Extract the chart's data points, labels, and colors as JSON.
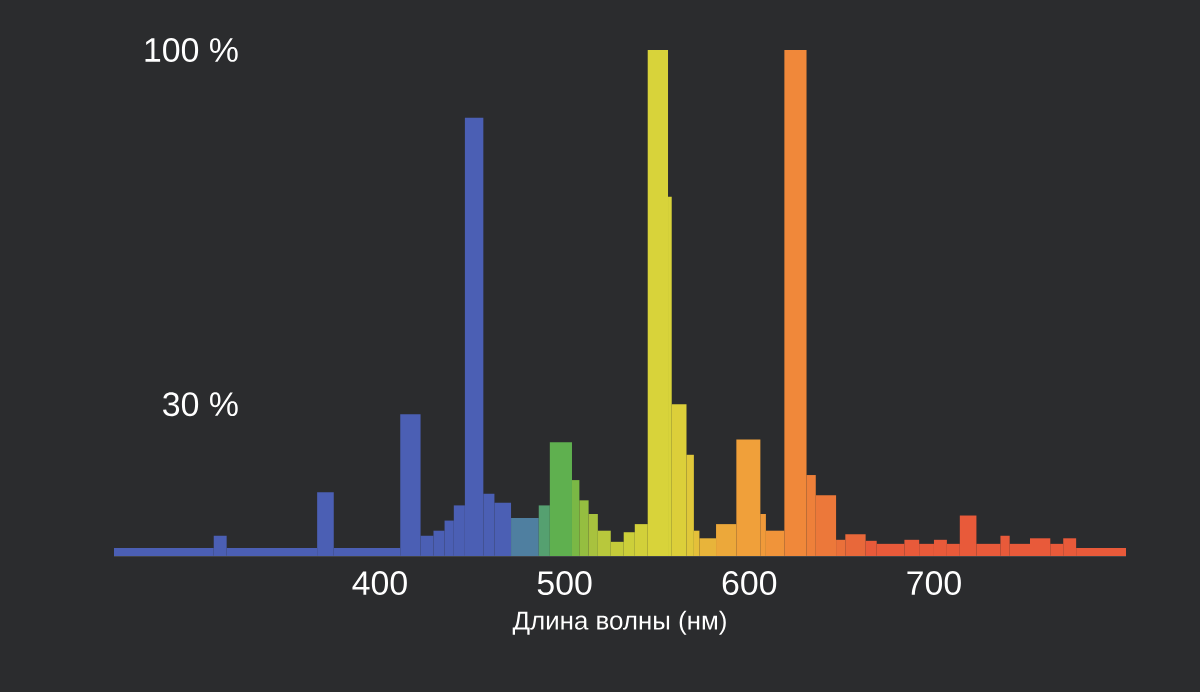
{
  "chart_data": {
    "type": "histogram",
    "xlabel": "Длина волны (нм)",
    "bins": [
      256,
      310,
      317,
      366,
      375,
      411,
      422,
      429,
      435,
      440,
      446,
      456,
      462,
      471,
      486,
      492,
      504,
      508,
      513,
      518,
      525,
      532,
      538,
      545,
      556,
      558,
      566,
      570,
      573,
      582,
      593,
      606,
      609,
      619,
      631,
      636,
      647,
      652,
      663,
      669,
      684,
      692,
      700,
      707,
      714,
      723,
      736,
      741,
      752,
      763,
      770,
      777,
      804
    ],
    "values": [
      1.6,
      4,
      1.6,
      12.6,
      1.6,
      28,
      4,
      5,
      7,
      10,
      86.6,
      12.3,
      10.5,
      7.5,
      10,
      22.5,
      15,
      11,
      8.3,
      5,
      2.8,
      4.7,
      6.3,
      100,
      71,
      30,
      20,
      5,
      3.5,
      6.3,
      23,
      8.3,
      5,
      100,
      16,
      12,
      3.2,
      4.3,
      3,
      2.4,
      3.2,
      2.4,
      3.2,
      2.4,
      8,
      2.4,
      4,
      2.4,
      3.5,
      2.4,
      3.5,
      1.6
    ],
    "colors": [
      "#4b5fb4",
      "#4b5fb4",
      "#4b5fb4",
      "#4b5fb4",
      "#4b5fb4",
      "#4b5fb4",
      "#4b5fb4",
      "#4b5fb4",
      "#4b5fb4",
      "#4b5fb4",
      "#4b5fb4",
      "#4b5fb4",
      "#4b5fb4",
      "#4f7fa0",
      "#55a070",
      "#5fb04f",
      "#7ab845",
      "#95be40",
      "#a8c23e",
      "#b8c83c",
      "#c5cc3a",
      "#cccf3a",
      "#d2d03a",
      "#d8d33a",
      "#d8d33a",
      "#dccf3a",
      "#e0c83a",
      "#e4c03a",
      "#e8b43a",
      "#eca83a",
      "#f0a03a",
      "#f09a3a",
      "#f0943a",
      "#f0883a",
      "#ee803a",
      "#ec783a",
      "#ea703a",
      "#e8683a",
      "#e85a3a",
      "#e85a3a",
      "#e85a3a",
      "#e85a3a",
      "#e85a3a",
      "#e85a3a",
      "#e85a3a",
      "#e85a3a",
      "#e85a3a",
      "#e85a3a",
      "#e85a3a",
      "#e85a3a",
      "#e85a3a",
      "#e85a3a"
    ],
    "xlim": [
      256,
      804
    ],
    "ylim": [
      0,
      100
    ],
    "xticks": [
      400,
      500,
      600,
      700
    ],
    "yticks": [
      {
        "value": 30,
        "label": "30 %"
      },
      {
        "value": 100,
        "label": "100 %"
      }
    ]
  }
}
